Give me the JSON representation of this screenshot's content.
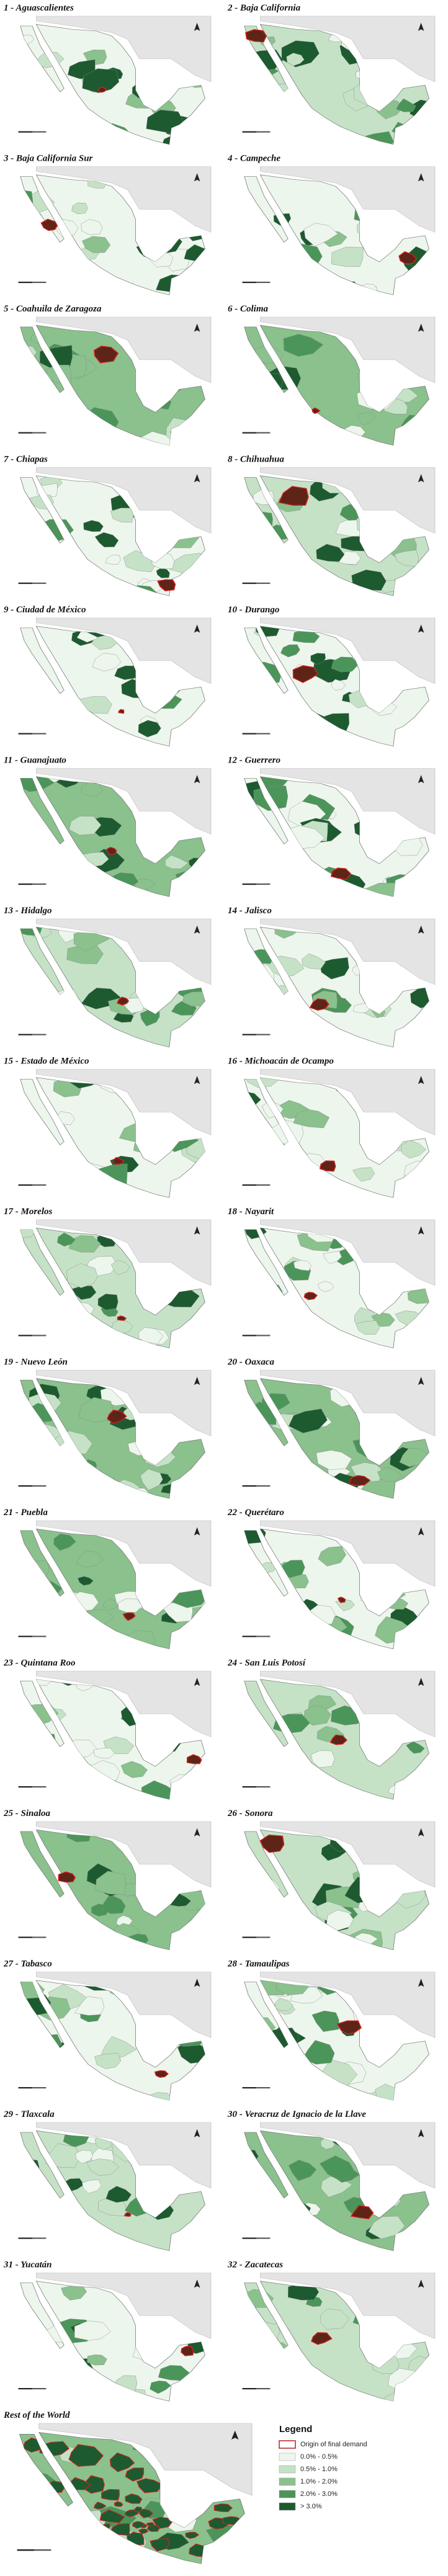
{
  "panels": [
    {
      "title": "1 - Aguascalientes"
    },
    {
      "title": "2 - Baja California"
    },
    {
      "title": "3 - Baja California Sur"
    },
    {
      "title": "4 - Campeche"
    },
    {
      "title": "5 - Coahuila de Zaragoza"
    },
    {
      "title": "6 - Colima"
    },
    {
      "title": "7 - Chiapas"
    },
    {
      "title": "8 - Chihuahua"
    },
    {
      "title": "9 - Ciudad de México"
    },
    {
      "title": "10 - Durango"
    },
    {
      "title": "11 - Guanajuato"
    },
    {
      "title": "12 - Guerrero"
    },
    {
      "title": "13 - Hidalgo"
    },
    {
      "title": "14 - Jalisco"
    },
    {
      "title": "15 - Estado de México"
    },
    {
      "title": "16 - Michoacán de Ocampo"
    },
    {
      "title": "17 - Morelos"
    },
    {
      "title": "18 - Nayarit"
    },
    {
      "title": "19 - Nuevo León"
    },
    {
      "title": "20 - Oaxaca"
    },
    {
      "title": "21 - Puebla"
    },
    {
      "title": "22 - Querétaro"
    },
    {
      "title": "23 - Quintana Roo"
    },
    {
      "title": "24 - San Luis Potosí"
    },
    {
      "title": "25 - Sinaloa"
    },
    {
      "title": "26 - Sonora"
    },
    {
      "title": "27 - Tabasco"
    },
    {
      "title": "28 - Tamaulipas"
    },
    {
      "title": "29 - Tlaxcala"
    },
    {
      "title": "30 - Veracruz de Ignacio de la Llave"
    },
    {
      "title": "31 - Yucatán"
    },
    {
      "title": "32 - Zacatecas"
    }
  ],
  "rest_of_world": {
    "title": "Rest of the World"
  },
  "legend": {
    "title": "Legend",
    "items": [
      {
        "label": "Origin of final demand",
        "color": "#b22222"
      },
      {
        "label": "0.0% - 0.5%",
        "color": "#edf6ec"
      },
      {
        "label": "0.5% - 1.0%",
        "color": "#c5e2c6"
      },
      {
        "label": "1.0% - 2.0%",
        "color": "#8ac18d"
      },
      {
        "label": "2.0% - 3.0%",
        "color": "#4c955a"
      },
      {
        "label": "> 3.0%",
        "color": "#1d5a30"
      }
    ]
  }
}
